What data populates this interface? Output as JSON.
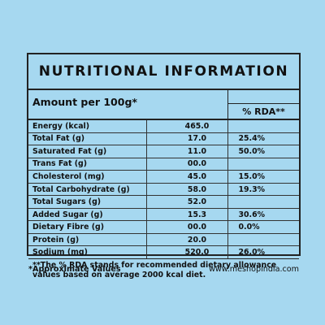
{
  "title": "NUTRITIONAL INFORMATION",
  "amount_label": "Amount per 100g*",
  "rda_header": "% RDA**",
  "rows": [
    {
      "name": "Energy (kcal)",
      "value": "465.0",
      "rda": ""
    },
    {
      "name": "Total Fat (g)",
      "value": "17.0",
      "rda": "25.4%"
    },
    {
      "name": "Saturated Fat (g)",
      "value": "11.0",
      "rda": "50.0%"
    },
    {
      "name": "Trans Fat (g)",
      "value": "00.0",
      "rda": ""
    },
    {
      "name": "Cholesterol (mg)",
      "value": "45.0",
      "rda": "15.0%"
    },
    {
      "name": "Total Carbohydrate (g)",
      "value": "58.0",
      "rda": "19.3%"
    },
    {
      "name": "Total Sugars (g)",
      "value": "52.0",
      "rda": ""
    },
    {
      "name": "Added  Sugar (g)",
      "value": "15.3",
      "rda": "30.6%"
    },
    {
      "name": "Dietary Fibre (g)",
      "value": "00.0",
      "rda": "0.0%"
    },
    {
      "name": "Protein (g)",
      "value": "20.0",
      "rda": ""
    },
    {
      "name": "Sodium (mg)",
      "value": "520.0",
      "rda": "26.0%"
    }
  ],
  "footnote": "**The % RDA stands for recommended dietary allowance values based on average 2000 kcal diet.",
  "approx_note": "*Approximate Values",
  "website": "www.meshopindia.com"
}
